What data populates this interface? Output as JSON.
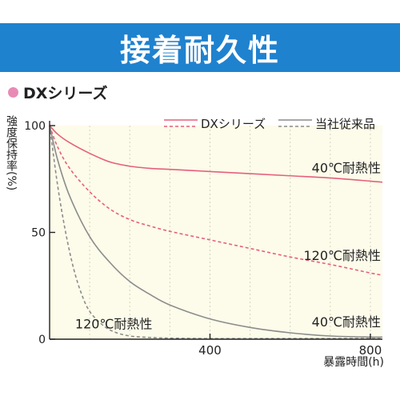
{
  "banner": {
    "title": "接着耐久性"
  },
  "section": {
    "label": "DXシリーズ",
    "dot_color": "#e98ab6"
  },
  "colors": {
    "banner": "#1f82cf",
    "plot_bg": "#fdfbea",
    "dx": "#e5607c",
    "conventional": "#8c8c8c"
  },
  "chart_data": {
    "type": "line",
    "ylabel": "強度保持率(%)",
    "xlabel": "暴露時間(h)",
    "xlim": [
      0,
      830
    ],
    "ylim": [
      0,
      100
    ],
    "xticks": [
      400,
      800
    ],
    "yticks": [
      0,
      50,
      100
    ],
    "grid": "vertical dashed",
    "legend": [
      {
        "name": "DXシリーズ",
        "style": "line-dashed",
        "color": "#e5607c"
      },
      {
        "name": "当社従来品",
        "style": "line-dashed",
        "color": "#8c8c8c"
      }
    ],
    "series": [
      {
        "name": "DXシリーズ",
        "condition": "40℃耐熱性",
        "dash": false,
        "color": "#e5607c",
        "x": [
          0,
          20,
          50,
          100,
          150,
          200,
          250,
          300,
          400,
          500,
          600,
          700,
          800,
          830
        ],
        "y": [
          100,
          96,
          92,
          87,
          83,
          81,
          80,
          79.5,
          78.5,
          77.5,
          76.5,
          75.5,
          74,
          73.5
        ]
      },
      {
        "name": "DXシリーズ",
        "condition": "120℃耐熱性",
        "dash": true,
        "color": "#e5607c",
        "x": [
          0,
          20,
          50,
          100,
          150,
          200,
          250,
          300,
          400,
          500,
          600,
          700,
          800,
          830
        ],
        "y": [
          100,
          90,
          80,
          69,
          61,
          56,
          53,
          50.5,
          46.5,
          42.5,
          38.5,
          35,
          31,
          30
        ]
      },
      {
        "name": "当社従来品",
        "condition": "40℃耐熱性",
        "dash": false,
        "color": "#8c8c8c",
        "x": [
          0,
          20,
          50,
          100,
          150,
          200,
          250,
          300,
          400,
          500,
          600,
          700,
          800,
          830
        ],
        "y": [
          100,
          84,
          67,
          48,
          36,
          27,
          21,
          16,
          9.5,
          5.5,
          3,
          1.5,
          1,
          1
        ]
      },
      {
        "name": "当社従来品",
        "condition": "120℃耐熱性",
        "dash": true,
        "color": "#8c8c8c",
        "x": [
          0,
          20,
          40,
          60,
          80,
          100,
          130,
          160,
          200,
          250,
          300,
          400,
          500,
          600,
          800,
          830
        ],
        "y": [
          100,
          72,
          50,
          33,
          21,
          13,
          7,
          3.5,
          1.5,
          0.8,
          0.5,
          0.3,
          0.3,
          0.3,
          0.3,
          0.3
        ]
      }
    ],
    "annotations": [
      {
        "text": "40℃耐熱性",
        "x": 775,
        "y": 78
      },
      {
        "text": "120℃耐熱性",
        "x": 775,
        "y": 37
      },
      {
        "text": "40℃耐熱性",
        "x": 775,
        "y": 6
      },
      {
        "text": "120℃耐熱性",
        "x": 160,
        "y": 5
      }
    ]
  }
}
